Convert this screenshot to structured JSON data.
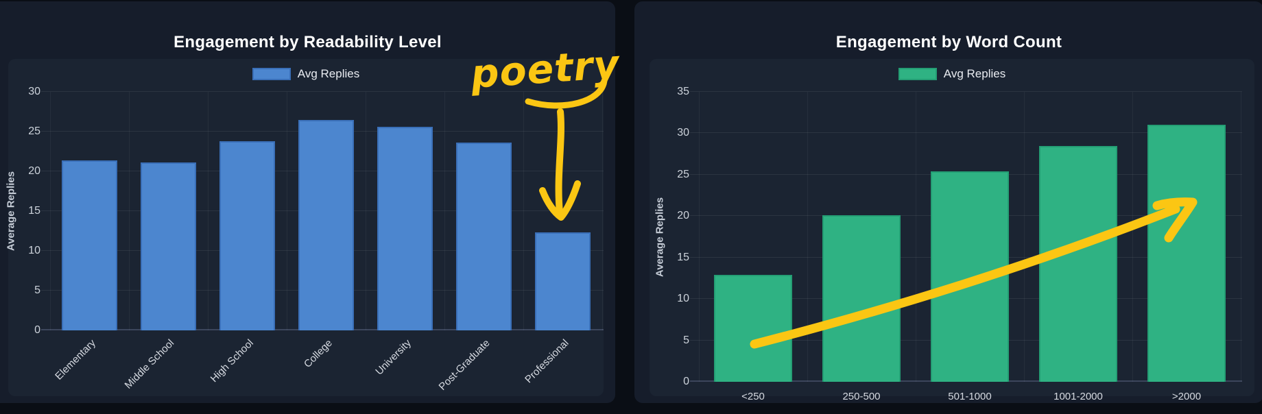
{
  "annotations": {
    "handwritten_label": "poetry",
    "ink_color": "#fbc613",
    "left_chart_note": "handwritten word poetry with arrow pointing down at the Professional bar",
    "right_chart_note": "handwritten upward trend arrow across bars"
  },
  "colors": {
    "page_background": "#0a0e15",
    "card_background": "#161d2b",
    "plot_panel_background": "#1b2432",
    "title_text": "#ffffff",
    "axis_text": "#cdd3db",
    "blue_bar": "#4c86cf",
    "green_bar": "#2fb283",
    "annotation_yellow": "#fbc613"
  },
  "chart_data": [
    {
      "type": "bar",
      "title": "Engagement by Readability Level",
      "series_name": "Avg Replies",
      "categories": [
        "Elementary",
        "Middle School",
        "High School",
        "College",
        "University",
        "Post-Graduate",
        "Professional"
      ],
      "values": [
        21.4,
        21.1,
        23.8,
        26.5,
        25.6,
        23.6,
        12.3
      ],
      "xlabel": "",
      "ylabel": "Average Replies",
      "ylim": [
        0,
        30
      ],
      "yticks": [
        0,
        5,
        10,
        15,
        20,
        25,
        30
      ],
      "bar_color": "#4c86cf",
      "bar_border_color": "#3a6fb8",
      "bar_width_frac": 0.7,
      "xtick_rotation": -45,
      "grid": true,
      "legend_position": "top"
    },
    {
      "type": "bar",
      "title": "Engagement by Word Count",
      "series_name": "Avg Replies",
      "categories": [
        "<250",
        "250-500",
        "501-1000",
        "1001-2000",
        ">2000"
      ],
      "values": [
        12.9,
        20.1,
        25.4,
        28.5,
        31
      ],
      "xlabel": "",
      "ylabel": "Average Replies",
      "ylim": [
        0,
        35
      ],
      "yticks": [
        0,
        5,
        10,
        15,
        20,
        25,
        30,
        35
      ],
      "bar_color": "#2fb283",
      "bar_border_color": "#249e74",
      "bar_width_frac": 0.72,
      "xtick_rotation": 0,
      "grid": true,
      "legend_position": "top"
    }
  ]
}
